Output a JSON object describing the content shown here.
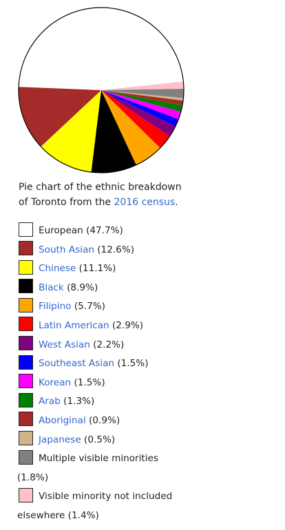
{
  "chart_data": {
    "type": "pie",
    "title": "",
    "slices": [
      {
        "label": "European",
        "value": 47.7,
        "color": "#ffffff",
        "linked": false
      },
      {
        "label": "South Asian",
        "value": 12.6,
        "color": "#a52a2a",
        "linked": true
      },
      {
        "label": "Chinese",
        "value": 11.1,
        "color": "#ffff00",
        "linked": true
      },
      {
        "label": "Black",
        "value": 8.9,
        "color": "#000000",
        "linked": true
      },
      {
        "label": "Filipino",
        "value": 5.7,
        "color": "#ffa500",
        "linked": true
      },
      {
        "label": "Latin American",
        "value": 2.9,
        "color": "#ff0000",
        "linked": true
      },
      {
        "label": "West Asian",
        "value": 2.2,
        "color": "#800080",
        "linked": true
      },
      {
        "label": "Southeast Asian",
        "value": 1.5,
        "color": "#0000ff",
        "linked": true
      },
      {
        "label": "Korean",
        "value": 1.5,
        "color": "#ff00ff",
        "linked": true
      },
      {
        "label": "Arab",
        "value": 1.3,
        "color": "#008000",
        "linked": true
      },
      {
        "label": "Aboriginal",
        "value": 0.9,
        "color": "#a52a2a",
        "linked": true
      },
      {
        "label": "Japanese",
        "value": 0.5,
        "color": "#d2b48c",
        "linked": true
      },
      {
        "label": "Multiple visible minorities",
        "value": 1.8,
        "color": "#808080",
        "linked": false
      },
      {
        "label": "Visible minority not included elsewhere",
        "value": 1.4,
        "color": "#ffc0cb",
        "linked": false
      }
    ],
    "legend_placement": "below"
  },
  "caption": {
    "line1": "Pie chart of the ethnic breakdown",
    "line2_prefix": "of Toronto from the ",
    "link": "2016 census",
    "line2_suffix": "."
  },
  "legend": [
    {
      "name": "European",
      "pct": " (47.7%)",
      "color": "#ffffff",
      "linked": false
    },
    {
      "name": "South Asian",
      "pct": " (12.6%)",
      "color": "#a52a2a",
      "linked": true
    },
    {
      "name": "Chinese",
      "pct": " (11.1%)",
      "color": "#ffff00",
      "linked": true
    },
    {
      "name": "Black",
      "pct": " (8.9%)",
      "color": "#000000",
      "linked": true
    },
    {
      "name": "Filipino",
      "pct": " (5.7%)",
      "color": "#ffa500",
      "linked": true
    },
    {
      "name": "Latin American",
      "pct": " (2.9%)",
      "color": "#ff0000",
      "linked": true
    },
    {
      "name": "West Asian",
      "pct": " (2.2%)",
      "color": "#800080",
      "linked": true
    },
    {
      "name": "Southeast Asian",
      "pct": " (1.5%)",
      "color": "#0000ff",
      "linked": true
    },
    {
      "name": "Korean",
      "pct": " (1.5%)",
      "color": "#ff00ff",
      "linked": true
    },
    {
      "name": "Arab",
      "pct": " (1.3%)",
      "color": "#008000",
      "linked": true
    },
    {
      "name": "Aboriginal",
      "pct": " (0.9%)",
      "color": "#a52a2a",
      "linked": true
    },
    {
      "name": "Japanese",
      "pct": " (0.5%)",
      "color": "#d2b48c",
      "linked": true
    },
    {
      "name": "Multiple visible minorities",
      "pct": "(1.8%)",
      "color": "#808080",
      "linked": false,
      "wrap": true
    },
    {
      "name": "Visible minority not included",
      "name2": "elsewhere",
      "pct": " (1.4%)",
      "color": "#ffc0cb",
      "linked": false,
      "wrap": true
    }
  ]
}
